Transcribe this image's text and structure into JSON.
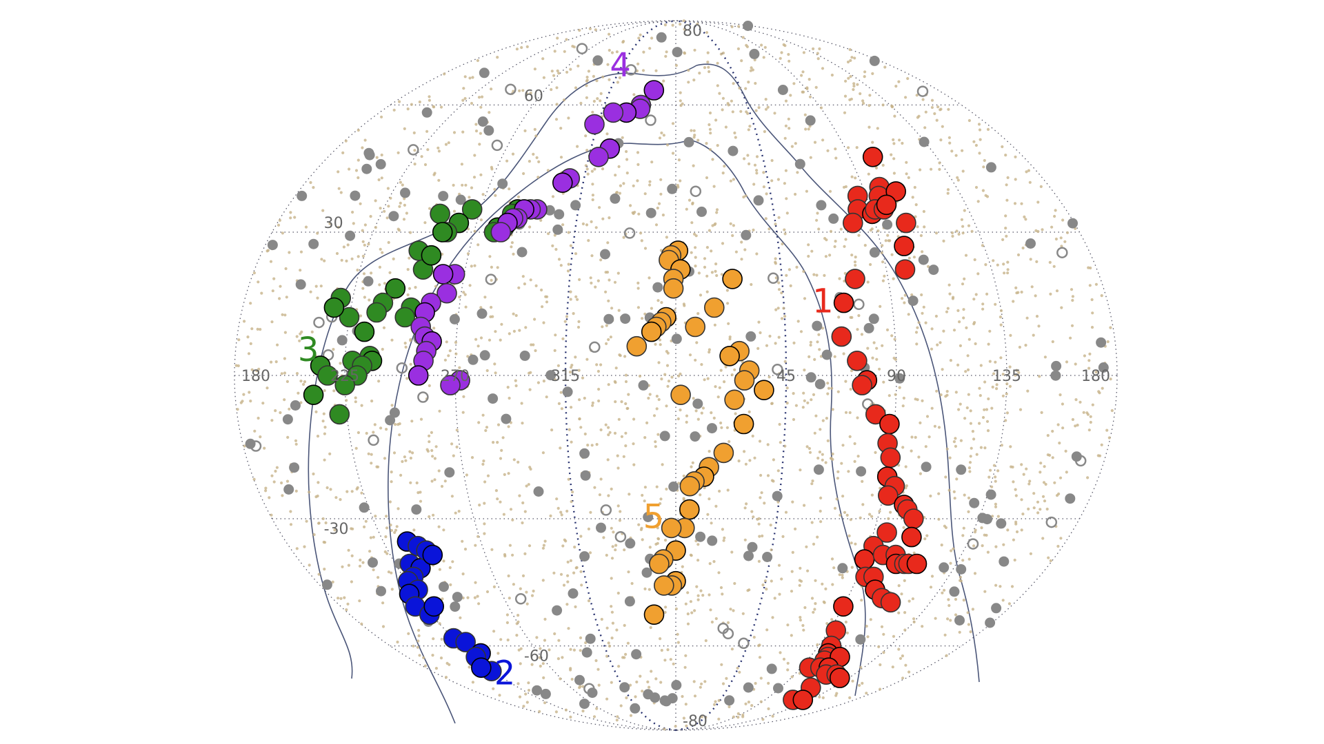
{
  "chart_data": {
    "type": "scatter",
    "projection": "mollweide",
    "title": "",
    "xlabel": "",
    "ylabel": "",
    "longitude_ticks": [
      "180",
      "135",
      "90",
      "45",
      "315",
      "270",
      "225",
      "180"
    ],
    "latitude_ticks": [
      "80",
      "60",
      "30",
      "-30",
      "-60",
      "-80"
    ],
    "grid": true,
    "colors": {
      "background_points": "#c7b38a",
      "gray_points": "#888888",
      "group1": "#e8291c",
      "group2": "#0a14d9",
      "group3": "#2f8a22",
      "group4": "#9a2fe0",
      "group5": "#f0a030"
    },
    "groups": [
      {
        "label": "1",
        "color": "#e8291c",
        "points": [
          [
            102,
            47
          ],
          [
            98,
            40
          ],
          [
            96,
            38
          ],
          [
            105,
            39
          ],
          [
            86,
            38
          ],
          [
            84,
            35
          ],
          [
            90,
            34
          ],
          [
            92,
            35
          ],
          [
            96,
            35
          ],
          [
            98,
            36
          ],
          [
            80,
            32
          ],
          [
            104,
            32
          ],
          [
            100,
            27
          ],
          [
            98,
            22
          ],
          [
            76,
            20
          ],
          [
            70,
            15
          ],
          [
            68,
            8
          ],
          [
            74,
            3
          ],
          [
            78,
            -1
          ],
          [
            76,
            -2
          ],
          [
            82,
            -8
          ],
          [
            88,
            -10
          ],
          [
            88,
            -14
          ],
          [
            90,
            -17
          ],
          [
            90,
            -21
          ],
          [
            94,
            -23
          ],
          [
            92,
            -25
          ],
          [
            100,
            -27
          ],
          [
            102,
            -28
          ],
          [
            106,
            -30
          ],
          [
            108,
            -34
          ],
          [
            96,
            -33
          ],
          [
            92,
            -36
          ],
          [
            90,
            -39
          ],
          [
            98,
            -38
          ],
          [
            104,
            -38
          ],
          [
            106,
            -40
          ],
          [
            110,
            -40
          ],
          [
            112,
            -40
          ],
          [
            116,
            -40
          ],
          [
            94,
            -43
          ],
          [
            98,
            -43
          ],
          [
            102,
            -46
          ],
          [
            108,
            -48
          ],
          [
            114,
            -49
          ],
          [
            90,
            -50
          ],
          [
            94,
            -56
          ],
          [
            98,
            -60
          ],
          [
            100,
            -62
          ],
          [
            102,
            -63
          ],
          [
            102,
            -64
          ],
          [
            110,
            -63
          ],
          [
            96,
            -66
          ],
          [
            104,
            -66
          ],
          [
            110,
            -66
          ],
          [
            114,
            -68
          ],
          [
            122,
            -68
          ],
          [
            128,
            -69
          ],
          [
            116,
            -72
          ],
          [
            118,
            -76
          ],
          [
            128,
            -76
          ]
        ]
      },
      {
        "label": "2",
        "color": "#0a14d9",
        "points": [
          [
            236,
            -35
          ],
          [
            240,
            -36
          ],
          [
            232,
            -40
          ],
          [
            236,
            -41
          ],
          [
            230,
            -43
          ],
          [
            243,
            -37
          ],
          [
            245,
            -38
          ],
          [
            226,
            -44
          ],
          [
            228,
            -46
          ],
          [
            222,
            -47
          ],
          [
            220,
            -50
          ],
          [
            224,
            -52
          ],
          [
            230,
            -50
          ],
          [
            225,
            -58
          ],
          [
            230,
            -59
          ],
          [
            232,
            -62
          ],
          [
            226,
            -63
          ],
          [
            224,
            -67
          ],
          [
            220,
            -66
          ]
        ]
      },
      {
        "label": "3",
        "color": "#2f8a22",
        "points": [
          [
            287,
            35
          ],
          [
            285,
            34
          ],
          [
            283,
            31
          ],
          [
            280,
            31
          ],
          [
            279,
            30
          ],
          [
            266,
            35
          ],
          [
            262,
            32
          ],
          [
            258,
            30
          ],
          [
            252,
            34
          ],
          [
            256,
            30
          ],
          [
            252,
            22
          ],
          [
            248,
            26
          ],
          [
            254,
            25
          ],
          [
            250,
            14
          ],
          [
            248,
            12
          ],
          [
            242,
            18
          ],
          [
            238,
            15
          ],
          [
            236,
            13
          ],
          [
            232,
            9
          ],
          [
            225,
            12
          ],
          [
            220,
            16
          ],
          [
            218,
            14
          ],
          [
            228,
            3
          ],
          [
            235,
            4
          ],
          [
            236,
            3
          ],
          [
            232,
            2
          ],
          [
            230,
            0
          ],
          [
            215,
            2
          ],
          [
            218,
            0
          ],
          [
            225,
            -2
          ],
          [
            212,
            -4
          ],
          [
            222,
            -8
          ]
        ]
      },
      {
        "label": "4",
        "color": "#9a2fe0",
        "points": [
          [
            345,
            64
          ],
          [
            338,
            60
          ],
          [
            338,
            59
          ],
          [
            330,
            58
          ],
          [
            322,
            58
          ],
          [
            313,
            55
          ],
          [
            325,
            49
          ],
          [
            320,
            47
          ],
          [
            308,
            42
          ],
          [
            305,
            41
          ],
          [
            296,
            35
          ],
          [
            293,
            35
          ],
          [
            290,
            35
          ],
          [
            288,
            33
          ],
          [
            286,
            33
          ],
          [
            284,
            32
          ],
          [
            282,
            30
          ],
          [
            266,
            21
          ],
          [
            261,
            21
          ],
          [
            264,
            17
          ],
          [
            258,
            15
          ],
          [
            256,
            13
          ],
          [
            255,
            10
          ],
          [
            257,
            8
          ],
          [
            260,
            7
          ],
          [
            258,
            5
          ],
          [
            257,
            3
          ],
          [
            255,
            0
          ],
          [
            272,
            -1
          ],
          [
            268,
            -2
          ]
        ]
      },
      {
        "label": "5",
        "color": "#f0a030",
        "points": [
          [
            1,
            26
          ],
          [
            358,
            25
          ],
          [
            357,
            24
          ],
          [
            2,
            22
          ],
          [
            359,
            20
          ],
          [
            359,
            18
          ],
          [
            24,
            20
          ],
          [
            16,
            14
          ],
          [
            8,
            10
          ],
          [
            356,
            12
          ],
          [
            354,
            11
          ],
          [
            352,
            10
          ],
          [
            350,
            9
          ],
          [
            344,
            6
          ],
          [
            26,
            5
          ],
          [
            22,
            4
          ],
          [
            30,
            1
          ],
          [
            28,
            -1
          ],
          [
            36,
            -3
          ],
          [
            24,
            -5
          ],
          [
            2,
            -4
          ],
          [
            28,
            -10
          ],
          [
            20,
            -16
          ],
          [
            14,
            -19
          ],
          [
            12,
            -21
          ],
          [
            8,
            -22
          ],
          [
            6,
            -23
          ],
          [
            6,
            -28
          ],
          [
            4,
            -32
          ],
          [
            358,
            -32
          ],
          [
            0,
            -37
          ],
          [
            354,
            -39
          ],
          [
            352,
            -40
          ],
          [
            0,
            -44
          ],
          [
            358,
            -45
          ],
          [
            354,
            -45
          ],
          [
            348,
            -52
          ]
        ]
      }
    ]
  }
}
